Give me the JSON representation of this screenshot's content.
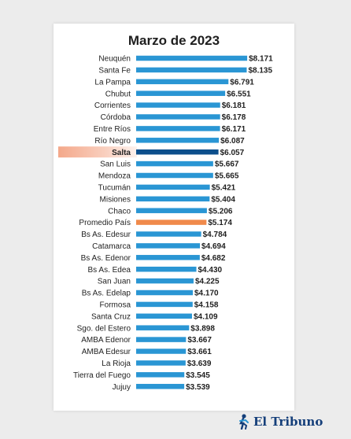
{
  "chart_data": {
    "type": "bar",
    "orientation": "horizontal",
    "title": "Marzo de 2023",
    "categories": [
      "Neuquén",
      "Santa Fe",
      "La Pampa",
      "Chubut",
      "Corrientes",
      "Córdoba",
      "Entre Ríos",
      "Río Negro",
      "Salta",
      "San Luis",
      "Mendoza",
      "Tucumán",
      "Misiones",
      "Chaco",
      "Promedio País",
      "Bs As. Edesur",
      "Catamarca",
      "Bs As. Edenor",
      "Bs As. Edea",
      "San Juan",
      "Bs As. Edelap",
      "Formosa",
      "Santa Cruz",
      "Sgo. del Estero",
      "AMBA Edenor",
      "AMBA Edesur",
      "La Rioja",
      "Tierra del Fuego",
      "Jujuy"
    ],
    "values": [
      8171,
      8135,
      6791,
      6551,
      6181,
      6178,
      6171,
      6087,
      6057,
      5667,
      5665,
      5421,
      5404,
      5206,
      5174,
      4784,
      4694,
      4682,
      4430,
      4225,
      4170,
      4158,
      4109,
      3898,
      3667,
      3661,
      3639,
      3545,
      3539
    ],
    "value_labels": [
      "$8.171",
      "$8.135",
      "$6.791",
      "$6.551",
      "$6.181",
      "$6.178",
      "$6.171",
      "$6.087",
      "$6.057",
      "$5.667",
      "$5.665",
      "$5.421",
      "$5.404",
      "$5.206",
      "$5.174",
      "$4.784",
      "$4.694",
      "$4.682",
      "$4.430",
      "$4.225",
      "$4.170",
      "$4.158",
      "$4.109",
      "$3.898",
      "$3.667",
      "$3.661",
      "$3.639",
      "$3.545",
      "$3.539"
    ],
    "highlight": {
      "category": "Salta",
      "bar_color": "#0d4f8c",
      "label_bg": "#f4a88a"
    },
    "reference": {
      "category": "Promedio País",
      "bar_color": "#f08a4b"
    },
    "bar_color": "#2a96d4",
    "xlim": [
      0,
      8200
    ],
    "axes_visible": false,
    "grid": false
  },
  "colors": {
    "bar": "#2a96d4",
    "highlight_bar": "#0d4f8c",
    "average_bar": "#f08a4b"
  },
  "brand": {
    "name": "El Tribuno",
    "logo_icon": "runner-logo-icon"
  }
}
